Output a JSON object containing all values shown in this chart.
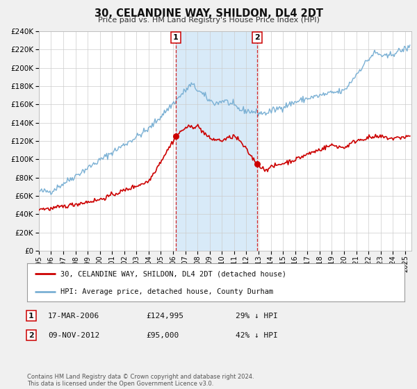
{
  "title": "30, CELANDINE WAY, SHILDON, DL4 2DT",
  "subtitle": "Price paid vs. HM Land Registry's House Price Index (HPI)",
  "legend_label_red": "30, CELANDINE WAY, SHILDON, DL4 2DT (detached house)",
  "legend_label_blue": "HPI: Average price, detached house, County Durham",
  "transaction1_date": "17-MAR-2006",
  "transaction1_price": 124995,
  "transaction1_label": "29% ↓ HPI",
  "transaction2_date": "09-NOV-2012",
  "transaction2_price": 95000,
  "transaction2_label": "42% ↓ HPI",
  "footer": "Contains HM Land Registry data © Crown copyright and database right 2024.\nThis data is licensed under the Open Government Licence v3.0.",
  "background_color": "#f0f0f0",
  "plot_background": "#ffffff",
  "highlight_color": "#d8eaf8",
  "red_color": "#cc0000",
  "blue_color": "#7ab0d4",
  "ylim": [
    0,
    240000
  ],
  "ytick_step": 20000,
  "xmin": 1995.0,
  "xmax": 2025.5,
  "transaction1_x": 2006.21,
  "transaction2_x": 2012.86,
  "vline1_x": 2006.21,
  "vline2_x": 2012.86
}
